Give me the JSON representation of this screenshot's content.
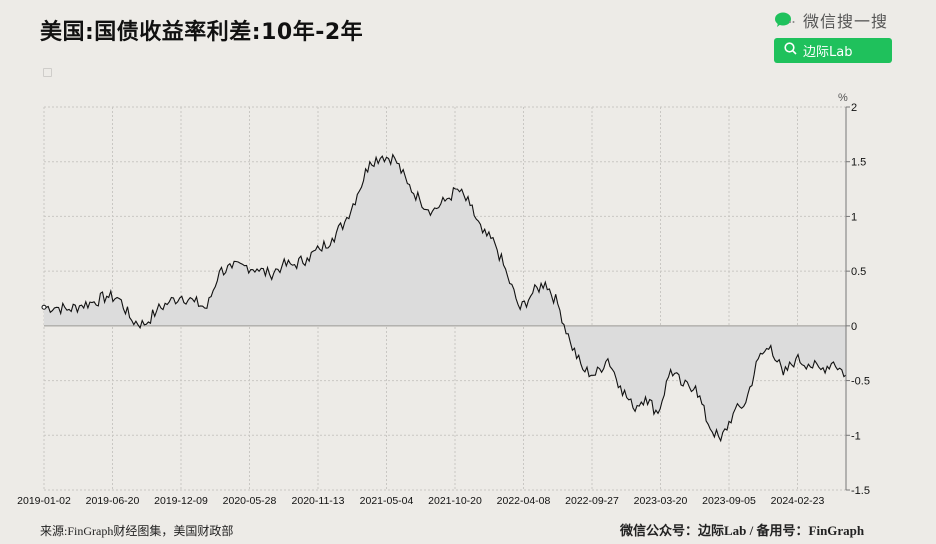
{
  "header": {
    "title": "美国:国债收益率利差:10年-2年"
  },
  "legend": {
    "items": [
      {
        "label": "",
        "color": "#cfcdca"
      }
    ]
  },
  "wechat": {
    "label": "微信搜一搜",
    "search_button_label": "边际Lab",
    "accent_color": "#1fc15c"
  },
  "footer": {
    "source": "来源:FinGraph财经图集，美国财政部",
    "account": "微信公众号：边际Lab / 备用号：FinGraph"
  },
  "chart_data": {
    "type": "area",
    "title": "美国:国债收益率利差:10年-2年",
    "xlabel": "",
    "ylabel": "%",
    "ylim": [
      -1.5,
      2
    ],
    "y_ticks": [
      2,
      1.5,
      1,
      0.5,
      0,
      -0.5,
      -1,
      -1.5
    ],
    "y_tick_labels": [
      "2",
      "1.5",
      "1",
      "0.5",
      "0",
      "-0.5",
      "-1",
      "-1.5"
    ],
    "x_tick_labels": [
      "2019-01-02",
      "2019-06-20",
      "2019-12-09",
      "2020-05-28",
      "2020-11-13",
      "2021-05-04",
      "2021-10-20",
      "2022-04-08",
      "2022-09-27",
      "2023-03-20",
      "2023-09-05",
      "2024-02-23"
    ],
    "grid": true,
    "y_axis_position": "right",
    "fill_baseline": 0,
    "line_color": "#111111",
    "fill_color": "#dcdcdc",
    "x": [
      "2019-01",
      "2019-02",
      "2019-03",
      "2019-04",
      "2019-05",
      "2019-06",
      "2019-07",
      "2019-08",
      "2019-09",
      "2019-10",
      "2019-11",
      "2019-12",
      "2020-01",
      "2020-02",
      "2020-03",
      "2020-04",
      "2020-05",
      "2020-06",
      "2020-07",
      "2020-08",
      "2020-09",
      "2020-10",
      "2020-11",
      "2020-12",
      "2021-01",
      "2021-02",
      "2021-03",
      "2021-04",
      "2021-05",
      "2021-06",
      "2021-07",
      "2021-08",
      "2021-09",
      "2021-10",
      "2021-11",
      "2021-12",
      "2022-01",
      "2022-02",
      "2022-03",
      "2022-04",
      "2022-05",
      "2022-06",
      "2022-07",
      "2022-08",
      "2022-09",
      "2022-10",
      "2022-11",
      "2022-12",
      "2023-01",
      "2023-02",
      "2023-03",
      "2023-04",
      "2023-05",
      "2023-06",
      "2023-07",
      "2023-08",
      "2023-09",
      "2023-10",
      "2023-11",
      "2023-12",
      "2024-01",
      "2024-02",
      "2024-03",
      "2024-04",
      "2024-05"
    ],
    "series": [
      {
        "name": "美国:国债收益率利差:10年-2年",
        "values": [
          0.17,
          0.17,
          0.15,
          0.19,
          0.22,
          0.27,
          0.25,
          0.05,
          0.01,
          0.14,
          0.22,
          0.27,
          0.22,
          0.16,
          0.5,
          0.53,
          0.55,
          0.52,
          0.47,
          0.55,
          0.56,
          0.62,
          0.7,
          0.8,
          0.95,
          1.2,
          1.5,
          1.55,
          1.53,
          1.3,
          1.15,
          1.05,
          1.14,
          1.25,
          1.1,
          0.85,
          0.75,
          0.45,
          0.15,
          0.3,
          0.4,
          0.2,
          -0.15,
          -0.4,
          -0.45,
          -0.3,
          -0.55,
          -0.75,
          -0.65,
          -0.8,
          -0.4,
          -0.55,
          -0.55,
          -0.9,
          -1.05,
          -0.8,
          -0.7,
          -0.3,
          -0.18,
          -0.45,
          -0.3,
          -0.35,
          -0.4,
          -0.33,
          -0.45
        ]
      }
    ]
  }
}
